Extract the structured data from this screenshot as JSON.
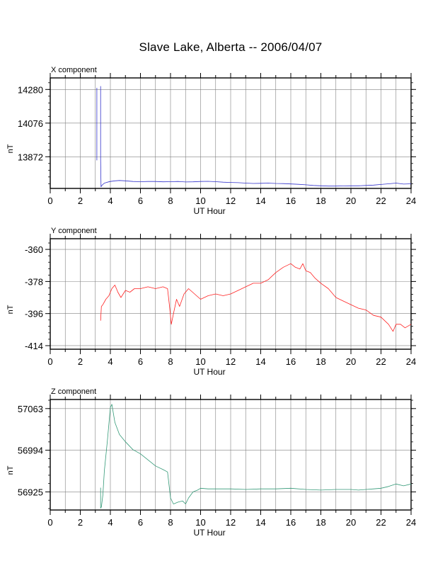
{
  "title": "Slave Lake, Alberta -- 2006/04/07",
  "chart_data": [
    {
      "type": "line",
      "component_label": "X component",
      "xlabel": "UT Hour",
      "ylabel": "nT",
      "xlim": [
        0,
        24
      ],
      "ylim": [
        13680,
        14350
      ],
      "xticks": [
        0,
        2,
        4,
        6,
        8,
        10,
        12,
        14,
        16,
        18,
        20,
        22,
        24
      ],
      "yticks": [
        13872,
        14076,
        14280
      ],
      "grid": true,
      "color": "#3333cc",
      "series": [
        {
          "x": [
            3.1,
            3.1
          ],
          "y": [
            13850,
            14290
          ]
        },
        {
          "x": [
            3.35,
            3.35,
            3.38,
            3.45,
            3.6,
            3.8,
            4.0,
            4.3,
            4.6,
            5.0,
            5.5,
            6.0,
            6.5,
            7.0,
            7.5,
            8.0,
            8.5,
            9.0,
            9.5,
            10.0,
            10.5,
            11.0,
            11.5,
            12.0,
            12.5,
            13.0,
            13.5,
            14.0,
            14.5,
            15.0,
            15.5,
            16.0,
            16.5,
            17.0,
            17.5,
            18.0,
            18.5,
            19.0,
            19.5,
            20.0,
            20.5,
            21.0,
            21.5,
            22.0,
            22.5,
            23.0,
            23.5,
            24.0
          ],
          "y": [
            14300,
            13860,
            13690,
            13700,
            13712,
            13718,
            13722,
            13726,
            13728,
            13726,
            13722,
            13721,
            13722,
            13722,
            13720,
            13721,
            13722,
            13719,
            13720,
            13722,
            13723,
            13721,
            13718,
            13716,
            13715,
            13712,
            13710,
            13711,
            13712,
            13710,
            13709,
            13707,
            13705,
            13702,
            13698,
            13696,
            13694,
            13694,
            13695,
            13696,
            13696,
            13698,
            13700,
            13704,
            13708,
            13712,
            13706,
            13708
          ]
        }
      ]
    },
    {
      "type": "line",
      "component_label": "Y component",
      "xlabel": "UT Hour",
      "ylabel": "nT",
      "xlim": [
        0,
        24
      ],
      "ylim": [
        -416,
        -354
      ],
      "xticks": [
        0,
        2,
        4,
        6,
        8,
        10,
        12,
        14,
        16,
        18,
        20,
        22,
        24
      ],
      "yticks": [
        -360,
        -378,
        -396,
        -414
      ],
      "grid": true,
      "color": "#ff2222",
      "series": [
        {
          "x": [
            3.35,
            3.4,
            3.5,
            3.7,
            3.9,
            4.1,
            4.3,
            4.5,
            4.7,
            5.0,
            5.3,
            5.6,
            6.0,
            6.5,
            7.0,
            7.5,
            7.8,
            7.95,
            8.05,
            8.2,
            8.4,
            8.6,
            8.9,
            9.2,
            9.6,
            10.0,
            10.5,
            11.0,
            11.5,
            12.0,
            12.5,
            13.0,
            13.5,
            14.0,
            14.5,
            15.0,
            15.5,
            16.0,
            16.3,
            16.6,
            16.8,
            17.0,
            17.3,
            17.6,
            18.0,
            18.5,
            19.0,
            19.5,
            20.0,
            20.5,
            21.0,
            21.5,
            22.0,
            22.5,
            22.8,
            23.0,
            23.3,
            23.6,
            24.0
          ],
          "y": [
            -400,
            -392,
            -391,
            -388,
            -386,
            -382,
            -380,
            -384,
            -387,
            -383,
            -384,
            -382,
            -382,
            -381,
            -382,
            -381,
            -382,
            -393,
            -402,
            -396,
            -388,
            -392,
            -385,
            -382,
            -385,
            -388,
            -386,
            -385,
            -386,
            -385,
            -383,
            -381,
            -379,
            -379,
            -377,
            -373,
            -370,
            -368,
            -370,
            -371,
            -368,
            -372,
            -373,
            -376,
            -379,
            -382,
            -387,
            -389,
            -391,
            -393,
            -394,
            -397,
            -398,
            -402,
            -406,
            -402,
            -402,
            -404,
            -402
          ]
        }
      ]
    },
    {
      "type": "line",
      "component_label": "Z component",
      "xlabel": "UT Hour",
      "ylabel": "nT",
      "xlim": [
        0,
        24
      ],
      "ylim": [
        56895,
        57078
      ],
      "xticks": [
        0,
        2,
        4,
        6,
        8,
        10,
        12,
        14,
        16,
        18,
        20,
        22,
        24
      ],
      "yticks": [
        56925,
        56994,
        57063
      ],
      "grid": true,
      "color": "#339977",
      "series": [
        {
          "x": [
            3.35,
            3.35,
            3.4,
            3.5,
            3.6,
            3.8,
            4.0,
            4.1,
            4.3,
            4.6,
            5.0,
            5.5,
            6.0,
            6.5,
            7.0,
            7.5,
            7.8,
            8.0,
            8.2,
            8.5,
            8.8,
            9.0,
            9.2,
            9.5,
            9.8,
            10.0,
            10.5,
            11.0,
            12.0,
            13.0,
            14.0,
            15.0,
            16.0,
            17.0,
            18.0,
            19.0,
            20.0,
            20.5,
            21.0,
            21.5,
            22.0,
            22.5,
            23.0,
            23.5,
            24.0
          ],
          "y": [
            56932,
            56898,
            56900,
            56920,
            56960,
            57010,
            57065,
            57070,
            57040,
            57020,
            57008,
            56995,
            56988,
            56978,
            56968,
            56962,
            56958,
            56915,
            56905,
            56908,
            56910,
            56905,
            56915,
            56925,
            56928,
            56931,
            56930,
            56930,
            56930,
            56929,
            56930,
            56930,
            56931,
            56929,
            56928,
            56929,
            56929,
            56928,
            56929,
            56930,
            56931,
            56934,
            56938,
            56935,
            56938
          ]
        }
      ]
    }
  ]
}
